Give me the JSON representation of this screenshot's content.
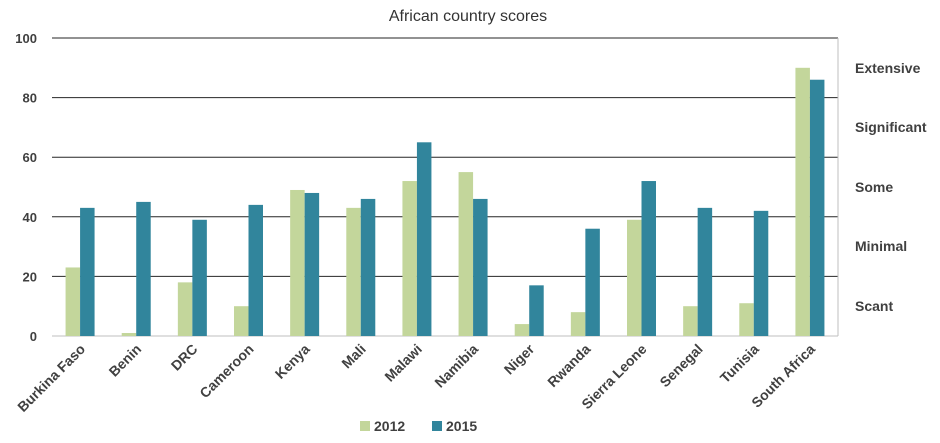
{
  "chart_data": {
    "type": "bar",
    "title": "African country scores",
    "categories": [
      "Burkina Faso",
      "Benin",
      "DRC",
      "Cameroon",
      "Kenya",
      "Mali",
      "Malawi",
      "Namibia",
      "Niger",
      "Rwanda",
      "Sierra Leone",
      "Senegal",
      "Tunisia",
      "South Africa"
    ],
    "series": [
      {
        "name": "2012",
        "color": "#c3d69b",
        "values": [
          23,
          1,
          18,
          10,
          49,
          43,
          52,
          55,
          4,
          8,
          39,
          10,
          11,
          90
        ]
      },
      {
        "name": "2015",
        "color": "#31859c",
        "values": [
          43,
          45,
          39,
          44,
          48,
          46,
          65,
          46,
          17,
          36,
          52,
          43,
          42,
          86
        ]
      }
    ],
    "ylim": [
      0,
      100
    ],
    "yticks": [
      0,
      20,
      40,
      60,
      80,
      100
    ],
    "secondary_axis_labels": [
      "Extensive",
      "Significant",
      "Some",
      "Minimal",
      "Scant"
    ],
    "grid": true,
    "legend_position": "bottom"
  }
}
